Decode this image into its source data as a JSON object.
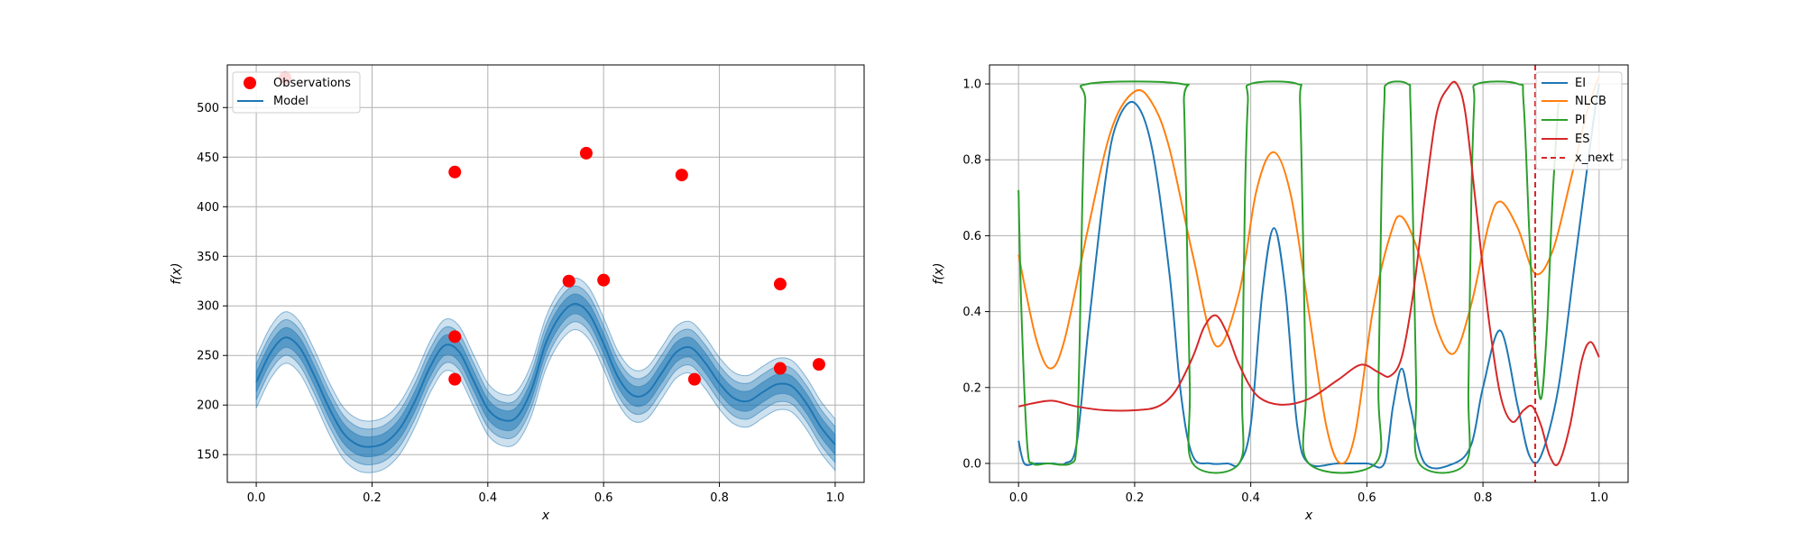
{
  "chart_data": [
    {
      "type": "line",
      "xlabel": "x",
      "ylabel": "f(x)",
      "xlim": [
        -0.05,
        1.05
      ],
      "ylim": [
        122,
        543
      ],
      "xticks": [
        0.0,
        0.2,
        0.4,
        0.6,
        0.8,
        1.0
      ],
      "xtick_labels": [
        "0.0",
        "0.2",
        "0.4",
        "0.6",
        "0.8",
        "1.0"
      ],
      "yticks": [
        150,
        200,
        250,
        300,
        350,
        400,
        450,
        500
      ],
      "ytick_labels": [
        "150",
        "200",
        "250",
        "300",
        "350",
        "400",
        "450",
        "500"
      ],
      "grid": true,
      "legend": {
        "placement": "top-left",
        "entries": [
          "Observations",
          "Model"
        ]
      },
      "colors": {
        "model": "#1f77b4",
        "observations": "#ff0000"
      },
      "series": [
        {
          "name": "Model",
          "kind": "line-with-bands",
          "x": [
            0.0,
            0.025,
            0.05,
            0.075,
            0.1,
            0.125,
            0.15,
            0.175,
            0.2,
            0.225,
            0.25,
            0.275,
            0.3,
            0.325,
            0.35,
            0.375,
            0.4,
            0.425,
            0.45,
            0.475,
            0.5,
            0.525,
            0.55,
            0.575,
            0.6,
            0.625,
            0.65,
            0.675,
            0.7,
            0.725,
            0.75,
            0.775,
            0.8,
            0.825,
            0.85,
            0.875,
            0.9,
            0.925,
            0.95,
            0.975,
            1.0
          ],
          "y": [
            223,
            253,
            268,
            258,
            230,
            198,
            172,
            160,
            158,
            163,
            178,
            205,
            238,
            260,
            254,
            225,
            196,
            185,
            188,
            215,
            262,
            290,
            302,
            292,
            262,
            228,
            210,
            212,
            232,
            253,
            258,
            243,
            222,
            207,
            204,
            213,
            221,
            219,
            202,
            178,
            160
          ],
          "band_widths": [
            10,
            18,
            26
          ]
        },
        {
          "name": "Observations",
          "kind": "scatter",
          "x": [
            0.05,
            0.343,
            0.343,
            0.343,
            0.54,
            0.57,
            0.6,
            0.735,
            0.757,
            0.905,
            0.905,
            0.972
          ],
          "y": [
            530,
            435,
            269,
            226,
            325,
            454,
            326,
            432,
            226,
            322,
            237,
            241
          ]
        }
      ]
    },
    {
      "type": "line",
      "xlabel": "x",
      "ylabel": "f(x)",
      "xlim": [
        -0.05,
        1.05
      ],
      "ylim": [
        -0.05,
        1.05
      ],
      "xticks": [
        0.0,
        0.2,
        0.4,
        0.6,
        0.8,
        1.0
      ],
      "xtick_labels": [
        "0.0",
        "0.2",
        "0.4",
        "0.6",
        "0.8",
        "1.0"
      ],
      "yticks": [
        0.0,
        0.2,
        0.4,
        0.6,
        0.8,
        1.0
      ],
      "ytick_labels": [
        "0.0",
        "0.2",
        "0.4",
        "0.6",
        "0.8",
        "1.0"
      ],
      "grid": true,
      "legend": {
        "placement": "top-right",
        "entries": [
          "EI",
          "NLCB",
          "PI",
          "ES",
          "x_next"
        ]
      },
      "x_next": 0.89,
      "series": [
        {
          "name": "EI",
          "color": "#1f77b4",
          "x": [
            0.0,
            0.01,
            0.03,
            0.06,
            0.08,
            0.1,
            0.12,
            0.15,
            0.17,
            0.2,
            0.23,
            0.26,
            0.28,
            0.3,
            0.33,
            0.36,
            0.38,
            0.4,
            0.42,
            0.44,
            0.46,
            0.48,
            0.5,
            0.55,
            0.6,
            0.63,
            0.645,
            0.66,
            0.675,
            0.7,
            0.75,
            0.78,
            0.8,
            0.83,
            0.86,
            0.88,
            0.9,
            0.93,
            0.96,
            0.99,
            1.0
          ],
          "y": [
            0.06,
            0.0,
            0.0,
            0.0,
            0.0,
            0.05,
            0.35,
            0.75,
            0.9,
            0.95,
            0.83,
            0.5,
            0.18,
            0.02,
            0.0,
            0.0,
            0.0,
            0.1,
            0.45,
            0.62,
            0.45,
            0.1,
            0.0,
            0.0,
            0.0,
            0.0,
            0.15,
            0.25,
            0.15,
            0.0,
            0.0,
            0.05,
            0.2,
            0.35,
            0.15,
            0.02,
            0.02,
            0.2,
            0.55,
            0.9,
            1.0
          ]
        },
        {
          "name": "NLCB",
          "color": "#ff7f0e",
          "x": [
            0.0,
            0.03,
            0.055,
            0.08,
            0.12,
            0.16,
            0.2,
            0.23,
            0.26,
            0.3,
            0.34,
            0.38,
            0.41,
            0.44,
            0.47,
            0.5,
            0.53,
            0.555,
            0.58,
            0.61,
            0.64,
            0.66,
            0.69,
            0.72,
            0.75,
            0.78,
            0.81,
            0.83,
            0.86,
            0.89,
            0.92,
            0.95,
            0.98,
            1.0
          ],
          "y": [
            0.55,
            0.33,
            0.25,
            0.33,
            0.62,
            0.88,
            0.98,
            0.95,
            0.83,
            0.55,
            0.31,
            0.45,
            0.72,
            0.82,
            0.7,
            0.4,
            0.1,
            0.0,
            0.08,
            0.4,
            0.6,
            0.65,
            0.55,
            0.36,
            0.29,
            0.42,
            0.63,
            0.69,
            0.62,
            0.5,
            0.56,
            0.74,
            0.93,
            1.02
          ]
        },
        {
          "name": "PI",
          "color": "#2ca02c",
          "x": [
            0.0,
            0.005,
            0.015,
            0.025,
            0.05,
            0.09,
            0.1,
            0.105,
            0.11,
            0.115,
            0.12,
            0.28,
            0.285,
            0.29,
            0.295,
            0.3,
            0.38,
            0.385,
            0.39,
            0.395,
            0.4,
            0.48,
            0.485,
            0.49,
            0.495,
            0.5,
            0.615,
            0.62,
            0.625,
            0.63,
            0.635,
            0.67,
            0.675,
            0.68,
            0.685,
            0.69,
            0.77,
            0.775,
            0.78,
            0.785,
            0.79,
            0.86,
            0.87,
            0.88,
            0.89,
            0.9,
            0.91,
            0.92,
            0.93
          ],
          "y": [
            0.72,
            0.4,
            0.05,
            0.0,
            0.0,
            0.0,
            0.05,
            0.3,
            0.7,
            0.95,
            1.0,
            1.0,
            0.95,
            0.6,
            0.2,
            0.0,
            0.0,
            0.2,
            0.7,
            0.95,
            1.0,
            1.0,
            0.95,
            0.6,
            0.2,
            0.0,
            0.0,
            0.2,
            0.7,
            0.95,
            1.0,
            1.0,
            0.95,
            0.6,
            0.2,
            0.0,
            0.0,
            0.2,
            0.7,
            0.95,
            1.0,
            1.0,
            0.95,
            0.6,
            0.3,
            0.17,
            0.35,
            0.7,
            0.95
          ]
        },
        {
          "name": "ES",
          "color": "#d62728",
          "x": [
            0.0,
            0.03,
            0.06,
            0.1,
            0.15,
            0.2,
            0.24,
            0.27,
            0.3,
            0.32,
            0.34,
            0.36,
            0.38,
            0.41,
            0.45,
            0.5,
            0.55,
            0.59,
            0.62,
            0.64,
            0.66,
            0.68,
            0.7,
            0.72,
            0.74,
            0.755,
            0.77,
            0.79,
            0.81,
            0.83,
            0.85,
            0.87,
            0.885,
            0.9,
            0.915,
            0.93,
            0.95,
            0.97,
            0.985,
            1.0
          ],
          "y": [
            0.15,
            0.16,
            0.165,
            0.15,
            0.14,
            0.14,
            0.15,
            0.19,
            0.28,
            0.36,
            0.39,
            0.34,
            0.26,
            0.18,
            0.155,
            0.17,
            0.22,
            0.26,
            0.24,
            0.23,
            0.28,
            0.45,
            0.7,
            0.92,
            0.99,
            1.0,
            0.92,
            0.65,
            0.38,
            0.18,
            0.11,
            0.14,
            0.15,
            0.1,
            0.02,
            0.0,
            0.1,
            0.27,
            0.32,
            0.28
          ]
        }
      ]
    }
  ]
}
